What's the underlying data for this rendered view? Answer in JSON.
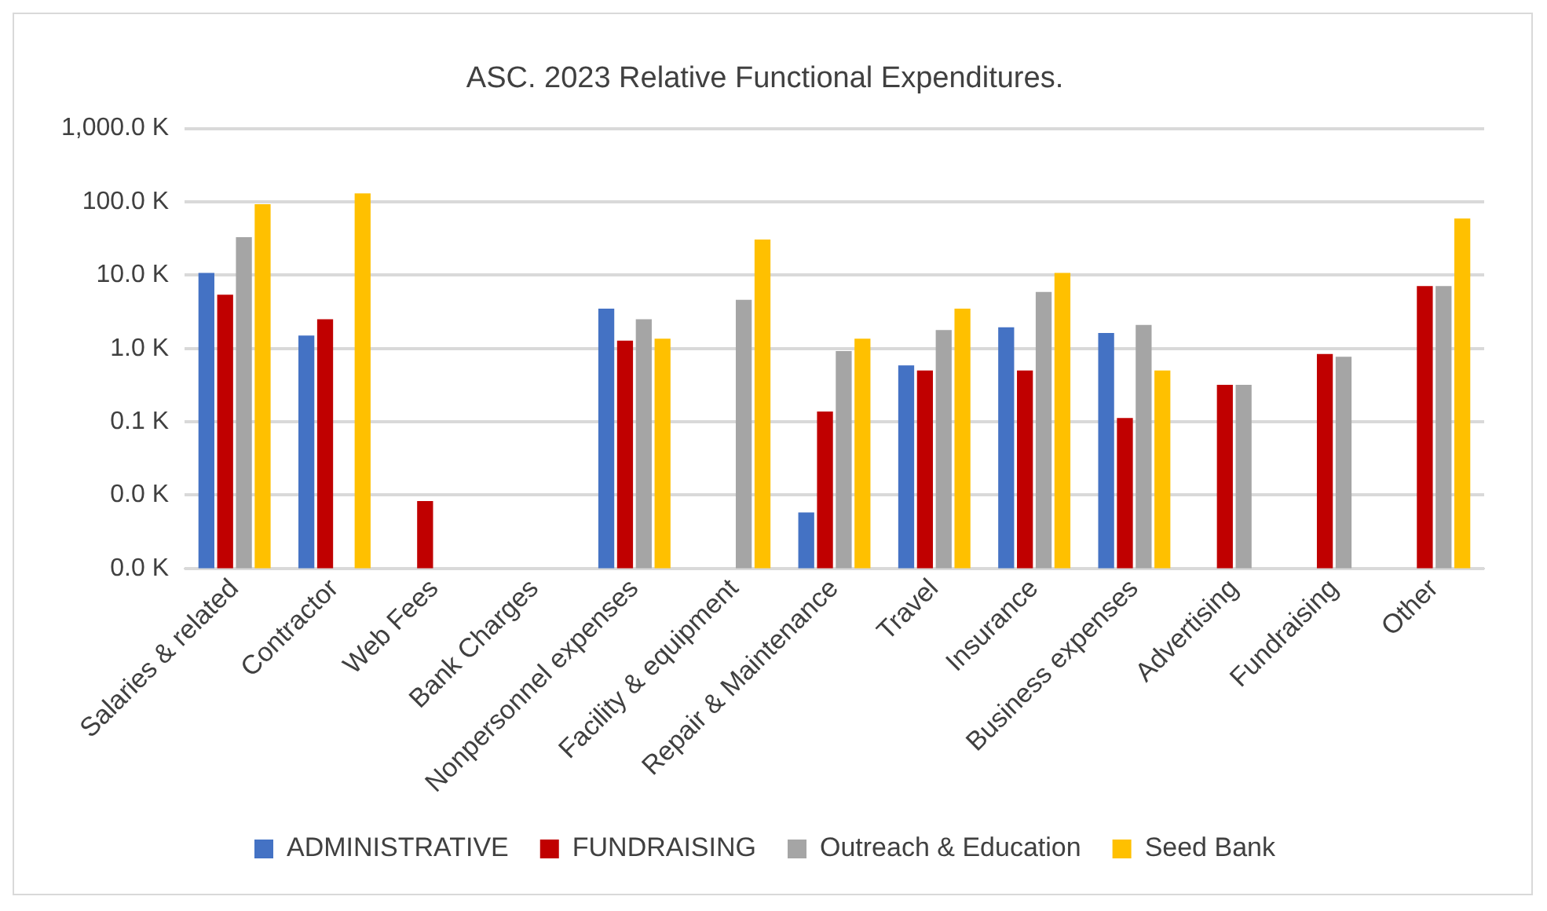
{
  "chart_data": {
    "type": "bar",
    "title": "ASC. 2023 Relative Functional Expenditures.",
    "categories": [
      "Salaries & related",
      "Contractor",
      "Web Fees",
      "Bank Charges",
      "Nonpersonnel expenses",
      "Facility & equipment",
      "Repair & Maintenance",
      "Travel",
      "Insurance",
      "Business expenses",
      "Advertising",
      "Fundraising",
      "Other"
    ],
    "series": [
      {
        "name": "ADMINISTRATIVE",
        "color": "#4472c4",
        "values": [
          10.7,
          1.5,
          null,
          null,
          3.5,
          null,
          0.0058,
          0.59,
          1.95,
          1.63,
          null,
          null,
          null
        ]
      },
      {
        "name": "FUNDRAISING",
        "color": "#c00000",
        "values": [
          5.4,
          2.5,
          0.0083,
          null,
          1.28,
          null,
          0.138,
          0.5,
          0.5,
          0.113,
          0.32,
          0.84,
          7.1
        ]
      },
      {
        "name": "Outreach & Education",
        "color": "#a5a5a5",
        "values": [
          33,
          null,
          null,
          null,
          2.5,
          4.6,
          0.92,
          1.78,
          5.9,
          2.1,
          0.32,
          0.77,
          7.1
        ]
      },
      {
        "name": "Seed Bank",
        "color": "#ffc000",
        "values": [
          93,
          130,
          null,
          null,
          1.36,
          30.6,
          1.36,
          3.5,
          10.7,
          0.5,
          null,
          null,
          59
        ]
      }
    ],
    "log": "y",
    "ylim": [
      0.001,
      1000
    ],
    "yticks": [
      {
        "value": 0.001,
        "label": "0.0 K"
      },
      {
        "value": 0.01,
        "label": "0.0 K"
      },
      {
        "value": 0.1,
        "label": "0.1 K"
      },
      {
        "value": 1,
        "label": "1.0 K"
      },
      {
        "value": 10,
        "label": "10.0 K"
      },
      {
        "value": 100,
        "label": "100.0 K"
      },
      {
        "value": 1000,
        "label": "1,000.0 K"
      }
    ],
    "grid": "y",
    "legend": "bottom"
  }
}
